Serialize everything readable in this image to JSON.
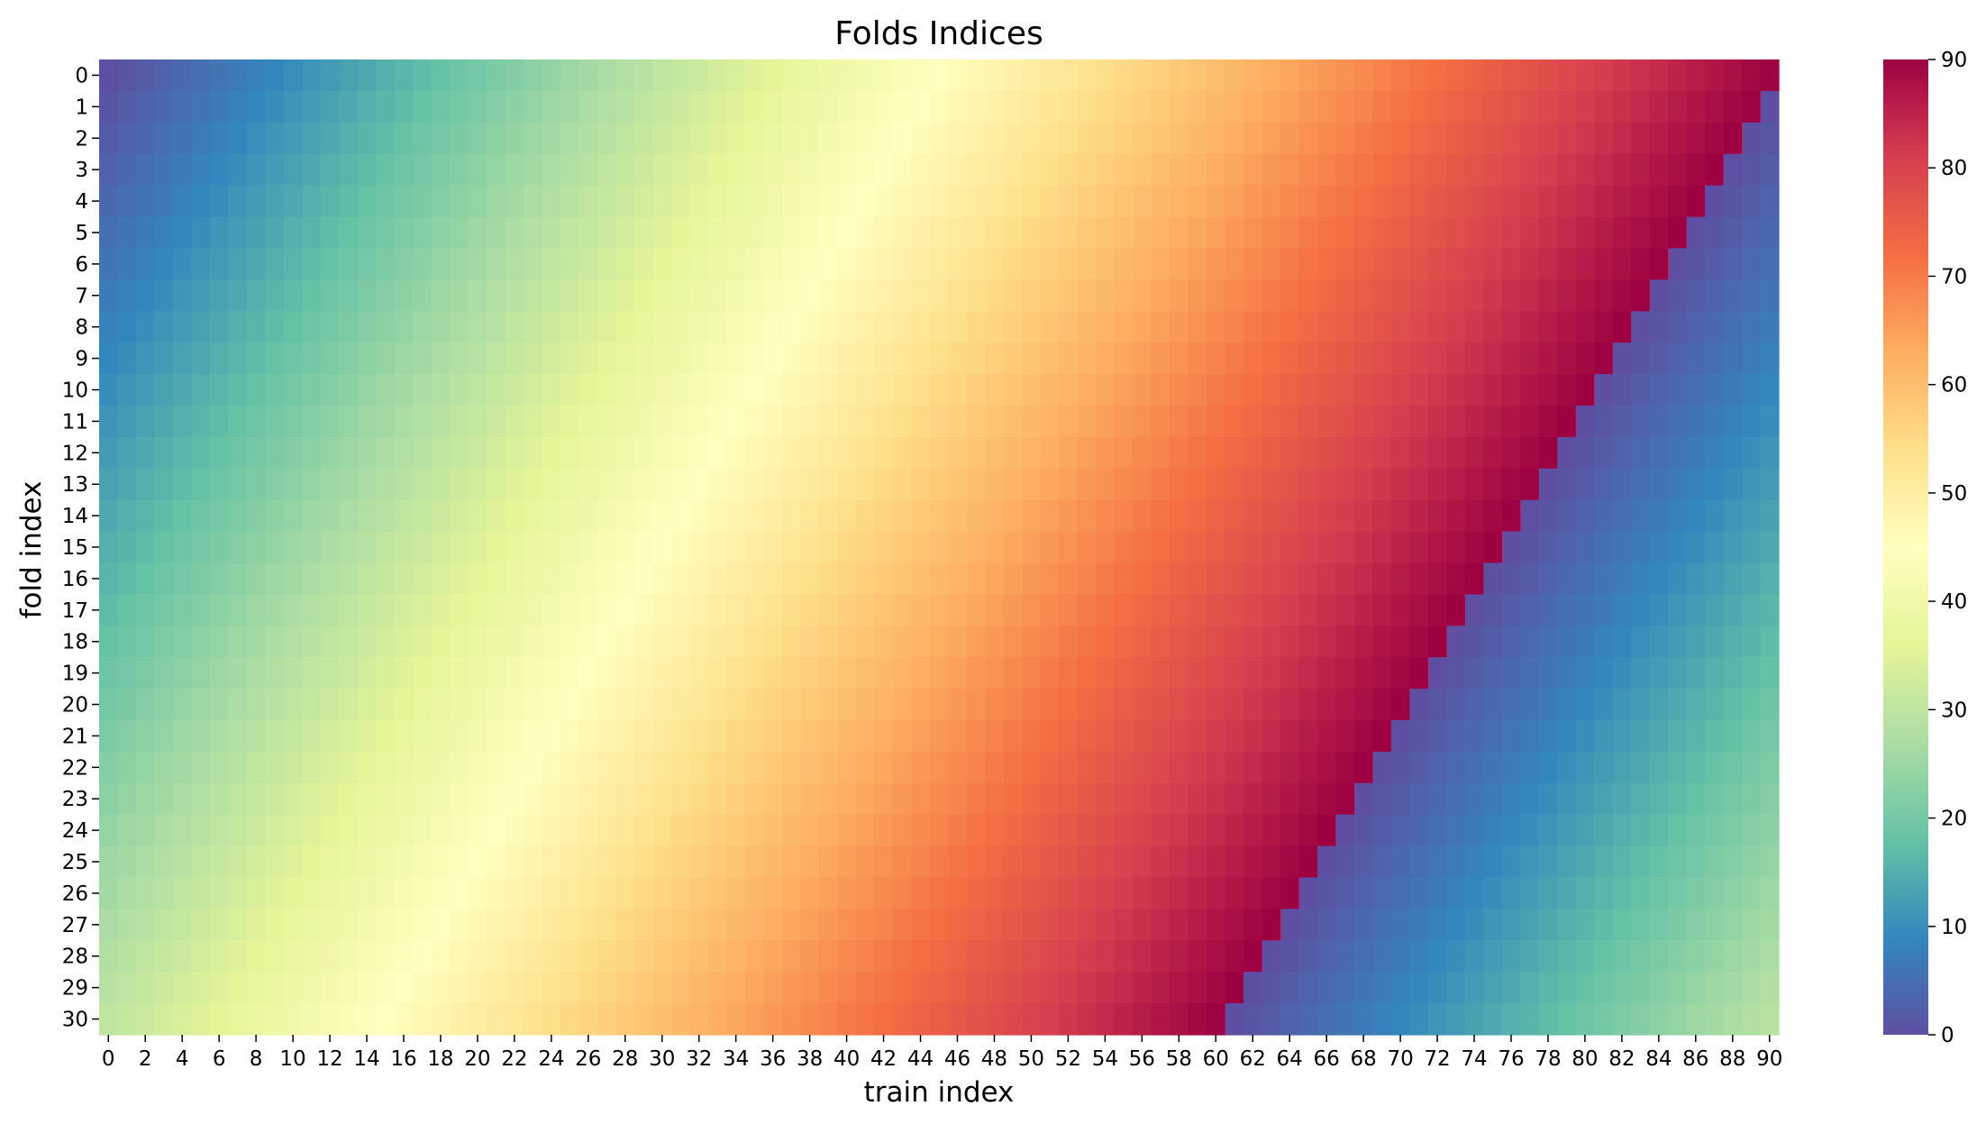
{
  "chart_data": {
    "type": "heatmap",
    "title": "Folds Indices",
    "xlabel": "train index",
    "ylabel": "fold index",
    "rows": 31,
    "cols": 91,
    "x_ticks": [
      0,
      2,
      4,
      6,
      8,
      10,
      12,
      14,
      16,
      18,
      20,
      22,
      24,
      26,
      28,
      30,
      32,
      34,
      36,
      38,
      40,
      42,
      44,
      46,
      48,
      50,
      52,
      54,
      56,
      58,
      60,
      62,
      64,
      66,
      68,
      70,
      72,
      74,
      76,
      78,
      80,
      82,
      84,
      86,
      88,
      90
    ],
    "y_ticks": [
      0,
      1,
      2,
      3,
      4,
      5,
      6,
      7,
      8,
      9,
      10,
      11,
      12,
      13,
      14,
      15,
      16,
      17,
      18,
      19,
      20,
      21,
      22,
      23,
      24,
      25,
      26,
      27,
      28,
      29,
      30
    ],
    "value_rule": "cell value at (fold i, train index j) = (j + i) mod 91",
    "colormap": "Spectral_r",
    "vmin": 0,
    "vmax": 90,
    "colorbar_ticks": [
      0,
      10,
      20,
      30,
      40,
      50,
      60,
      70,
      80,
      90
    ],
    "colormap_stops": [
      "#5e4fa2",
      "#3288bd",
      "#66c2a5",
      "#abdda4",
      "#e6f598",
      "#ffffbf",
      "#fee08b",
      "#fdae61",
      "#f46d43",
      "#d53e4f",
      "#9e0142"
    ]
  }
}
